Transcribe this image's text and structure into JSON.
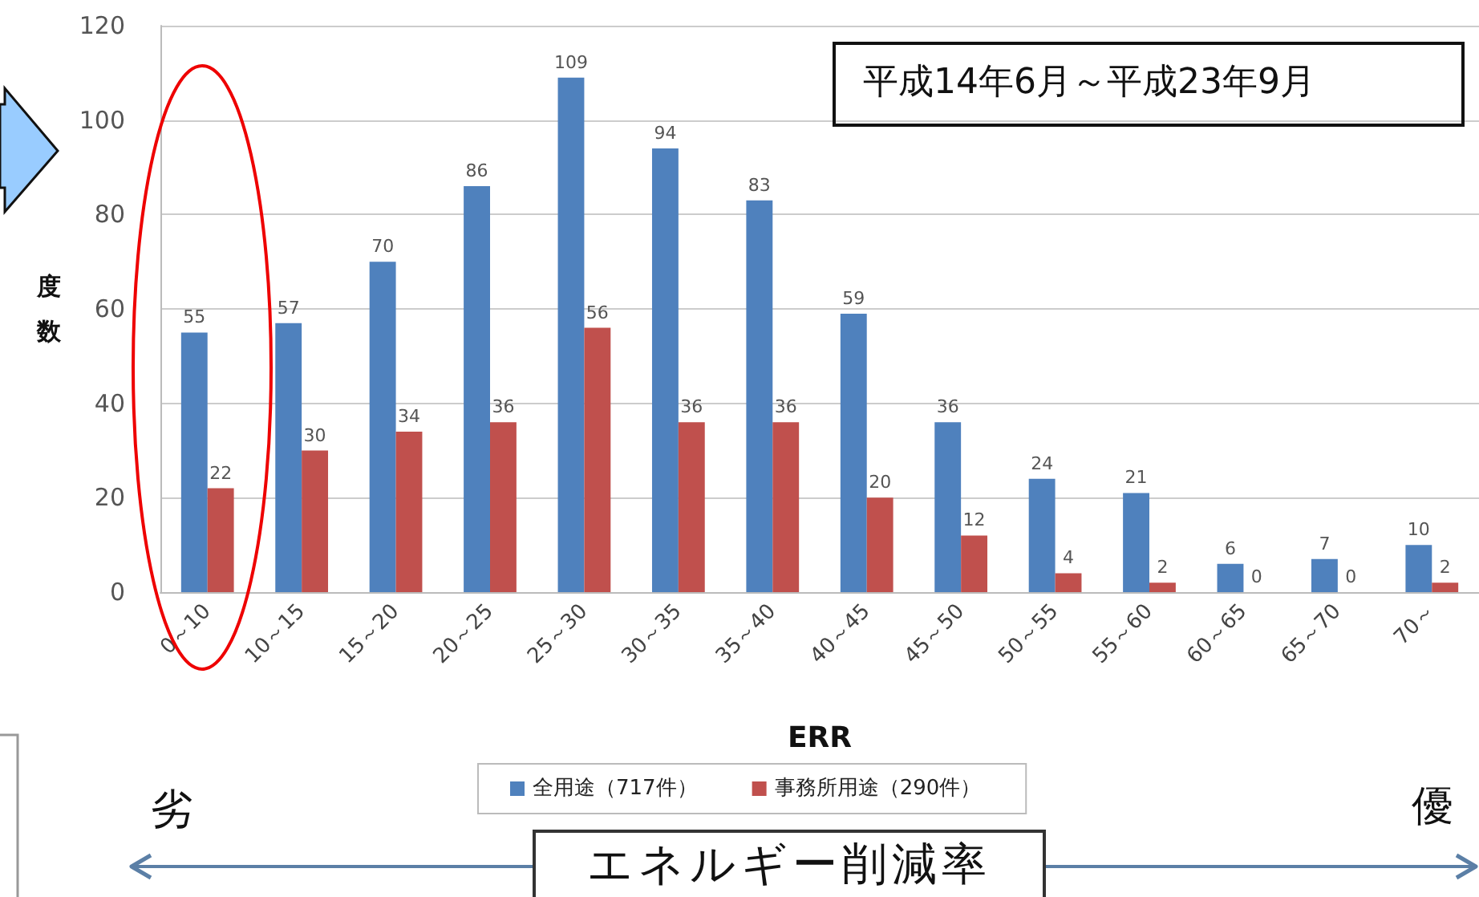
{
  "chart_data": {
    "type": "bar",
    "categories": [
      "0～10",
      "10～15",
      "15～20",
      "20～25",
      "25～30",
      "30～35",
      "35～40",
      "40～45",
      "45～50",
      "50～55",
      "55～60",
      "60～65",
      "65～70",
      "70～"
    ],
    "series": [
      {
        "name": "全用途（717件）",
        "color": "#4f81bd",
        "values": [
          55,
          57,
          70,
          86,
          109,
          94,
          83,
          59,
          36,
          24,
          21,
          6,
          7,
          10
        ]
      },
      {
        "name": "事務所用途（290件）",
        "color": "#c0504d",
        "values": [
          22,
          30,
          34,
          36,
          56,
          36,
          36,
          20,
          12,
          4,
          2,
          0,
          0,
          2
        ]
      }
    ],
    "xlabel": "ERR",
    "ylabel": "度数",
    "ylim": [
      0,
      120
    ],
    "yticks": [
      0,
      20,
      40,
      60,
      80,
      100,
      120
    ],
    "grid": "y",
    "legend": "bottom",
    "data_labels": true,
    "annotations": [
      "平成14年6月～平成23年9月",
      "劣",
      "優",
      "エネルギー削減率"
    ]
  }
}
